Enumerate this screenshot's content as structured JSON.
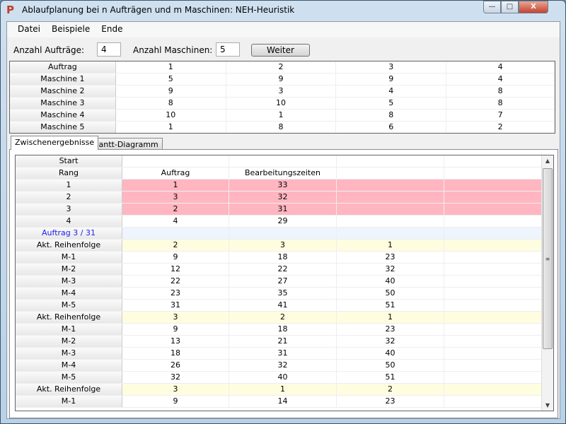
{
  "window": {
    "title": "Ablaufplanung bei n Aufträgen und m Maschinen: NEH-Heuristik",
    "min": "—",
    "max": "□",
    "close": "X"
  },
  "menu": [
    "Datei",
    "Beispiele",
    "Ende"
  ],
  "form": {
    "auftraege_label": "Anzahl Aufträge:",
    "auftraege_value": "4",
    "maschinen_label": "Anzahl Maschinen:",
    "maschinen_value": "5",
    "weiter": "Weiter"
  },
  "top_table": {
    "rows": [
      {
        "label": "Auftrag",
        "cells": [
          "1",
          "2",
          "3",
          "4"
        ]
      },
      {
        "label": "Maschine 1",
        "cells": [
          "5",
          "9",
          "9",
          "4"
        ]
      },
      {
        "label": "Maschine 2",
        "cells": [
          "9",
          "3",
          "4",
          "8"
        ]
      },
      {
        "label": "Maschine 3",
        "cells": [
          "8",
          "10",
          "5",
          "8"
        ]
      },
      {
        "label": "Maschine 4",
        "cells": [
          "10",
          "1",
          "8",
          "7"
        ]
      },
      {
        "label": "Maschine 5",
        "cells": [
          "1",
          "8",
          "6",
          "2"
        ]
      }
    ]
  },
  "tabs": [
    "Zwischenergebnisse",
    "Gantt-Diagramm"
  ],
  "results": {
    "rows": [
      {
        "label": "Start",
        "cells": [
          "",
          "",
          "",
          ""
        ],
        "style": ""
      },
      {
        "label": "Rang",
        "cells": [
          "Auftrag",
          "Bearbeitungszeiten",
          "",
          ""
        ],
        "style": ""
      },
      {
        "label": "1",
        "cells": [
          "1",
          "33",
          "",
          ""
        ],
        "style": "pink"
      },
      {
        "label": "2",
        "cells": [
          "3",
          "32",
          "",
          ""
        ],
        "style": "pink"
      },
      {
        "label": "3",
        "cells": [
          "2",
          "31",
          "",
          ""
        ],
        "style": "pink"
      },
      {
        "label": "4",
        "cells": [
          "4",
          "29",
          "",
          ""
        ],
        "style": ""
      },
      {
        "label": "Auftrag 3 / 31",
        "cells": [
          "",
          "",
          "",
          ""
        ],
        "style": "blue"
      },
      {
        "label": "Akt. Reihenfolge",
        "cells": [
          "2",
          "3",
          "1",
          ""
        ],
        "style": "yellow"
      },
      {
        "label": "M-1",
        "cells": [
          "9",
          "18",
          "23",
          ""
        ],
        "style": ""
      },
      {
        "label": "M-2",
        "cells": [
          "12",
          "22",
          "32",
          ""
        ],
        "style": ""
      },
      {
        "label": "M-3",
        "cells": [
          "22",
          "27",
          "40",
          ""
        ],
        "style": ""
      },
      {
        "label": "M-4",
        "cells": [
          "23",
          "35",
          "50",
          ""
        ],
        "style": ""
      },
      {
        "label": "M-5",
        "cells": [
          "31",
          "41",
          "51",
          ""
        ],
        "style": ""
      },
      {
        "label": "Akt. Reihenfolge",
        "cells": [
          "3",
          "2",
          "1",
          ""
        ],
        "style": "yellow"
      },
      {
        "label": "M-1",
        "cells": [
          "9",
          "18",
          "23",
          ""
        ],
        "style": ""
      },
      {
        "label": "M-2",
        "cells": [
          "13",
          "21",
          "32",
          ""
        ],
        "style": ""
      },
      {
        "label": "M-3",
        "cells": [
          "18",
          "31",
          "40",
          ""
        ],
        "style": ""
      },
      {
        "label": "M-4",
        "cells": [
          "26",
          "32",
          "50",
          ""
        ],
        "style": ""
      },
      {
        "label": "M-5",
        "cells": [
          "32",
          "40",
          "51",
          ""
        ],
        "style": ""
      },
      {
        "label": "Akt. Reihenfolge",
        "cells": [
          "3",
          "1",
          "2",
          ""
        ],
        "style": "yellow"
      },
      {
        "label": "M-1",
        "cells": [
          "9",
          "14",
          "23",
          ""
        ],
        "style": ""
      }
    ]
  }
}
